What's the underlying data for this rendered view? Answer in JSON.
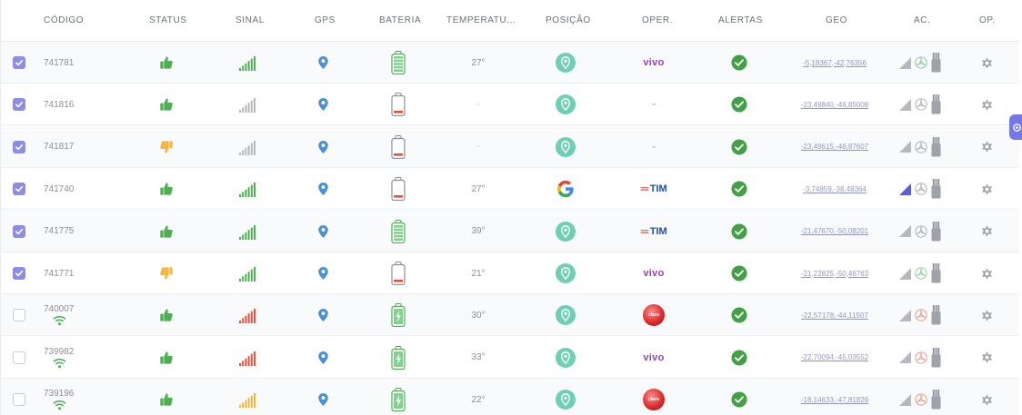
{
  "columns": {
    "codigo": "CÓDIGO",
    "status": "STATUS",
    "sinal": "SINAL",
    "gps": "GPS",
    "bateria": "BATERIA",
    "temperatura": "TEMPERATU...",
    "posicao": "POSIÇÃO",
    "oper": "OPER.",
    "alertas": "ALERTAS",
    "geo": "GEO",
    "ac": "AC.",
    "op": "OP."
  },
  "colors": {
    "accent": "#8d8de8",
    "status_up": "#4caf50",
    "status_down": "#f5b942",
    "signal_green": "#4caf50",
    "signal_gray": "#b5b8bd",
    "signal_red": "#e8503a",
    "signal_yellow": "#f2b53a",
    "gps_blue": "#4a90d9",
    "alert_green": "#43a047"
  },
  "rows": [
    {
      "checked": true,
      "code": "741781",
      "wifi": false,
      "status": "up",
      "signal": "green",
      "battery": "full-green",
      "temperature": "27°",
      "position": "pin",
      "operator": "vivo",
      "alert": "ok",
      "geo": "-5,18367,-42,76356",
      "ac_signal": "gray",
      "ac_fan": "green"
    },
    {
      "checked": true,
      "code": "741816",
      "wifi": false,
      "status": "up",
      "signal": "gray",
      "battery": "low-red",
      "temperature": "-",
      "position": "pin",
      "operator": "-",
      "alert": "ok",
      "geo": "-23,49840,-46,85008",
      "ac_signal": "gray",
      "ac_fan": "gray"
    },
    {
      "checked": true,
      "code": "741817",
      "wifi": false,
      "status": "down",
      "signal": "gray",
      "battery": "low-red",
      "temperature": "-",
      "position": "pin",
      "operator": "-",
      "alert": "ok",
      "geo": "-23,49615,-46,87607",
      "ac_signal": "gray",
      "ac_fan": "gray"
    },
    {
      "checked": true,
      "code": "741740",
      "wifi": false,
      "status": "up",
      "signal": "green",
      "battery": "low-red",
      "temperature": "27°",
      "position": "google",
      "operator": "TIM",
      "alert": "ok",
      "geo": "-3,74859,-38,48364",
      "ac_signal": "blue",
      "ac_fan": "gray"
    },
    {
      "checked": true,
      "code": "741775",
      "wifi": false,
      "status": "up",
      "signal": "green",
      "battery": "full-green",
      "temperature": "39°",
      "position": "pin",
      "operator": "TIM",
      "alert": "ok",
      "geo": "-21,47670,-50,08201",
      "ac_signal": "gray",
      "ac_fan": "gray"
    },
    {
      "checked": true,
      "code": "741771",
      "wifi": false,
      "status": "down",
      "signal": "green",
      "battery": "low-red",
      "temperature": "21°",
      "position": "pin",
      "operator": "vivo",
      "alert": "ok",
      "geo": "-21,22825,-50,46763",
      "ac_signal": "gray",
      "ac_fan": "green"
    },
    {
      "checked": false,
      "code": "740007",
      "wifi": true,
      "status": "up",
      "signal": "red",
      "battery": "charging",
      "temperature": "30°",
      "position": "pin",
      "operator": "claro",
      "alert": "ok",
      "geo": "-22,57178,-44,11507",
      "ac_signal": "gray",
      "ac_fan": "red"
    },
    {
      "checked": false,
      "code": "739982",
      "wifi": true,
      "status": "up",
      "signal": "red",
      "battery": "charging",
      "temperature": "33°",
      "position": "pin",
      "operator": "vivo",
      "alert": "ok",
      "geo": "-22,70094,-45,03552",
      "ac_signal": "gray",
      "ac_fan": "red"
    },
    {
      "checked": false,
      "code": "739196",
      "wifi": true,
      "status": "up",
      "signal": "yellow",
      "battery": "charging",
      "temperature": "22°",
      "position": "pin",
      "operator": "claro",
      "alert": "ok",
      "geo": "-18,14633,-47,81829",
      "ac_signal": "gray",
      "ac_fan": "red"
    }
  ],
  "icons": {
    "status": "thumb-icon",
    "signal": "signal-bars-icon",
    "gps": "location-pin-icon",
    "battery": "battery-icon",
    "position": "map-pin-bubble-icon",
    "alert": "check-circle-icon",
    "ac_signal": "signal-triangle-icon",
    "ac_fan": "fan-icon",
    "ac_device": "device-icon",
    "op": "gear-icon",
    "side_tab": "gear-icon"
  }
}
